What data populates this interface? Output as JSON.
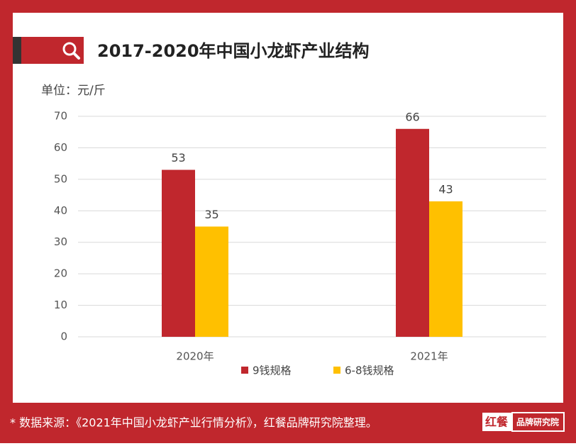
{
  "chart_data": {
    "type": "bar",
    "title": "2017-2020年中国小龙虾产业结构",
    "ylabel": "单位：元/斤",
    "categories": [
      "2020年",
      "2021年"
    ],
    "series": [
      {
        "name": "9钱规格",
        "color": "#c0272d",
        "values": [
          53,
          66
        ]
      },
      {
        "name": "6-8钱规格",
        "color": "#ffc000",
        "values": [
          35,
          43
        ]
      }
    ],
    "ylim": [
      0,
      70
    ],
    "yticks": [
      0,
      10,
      20,
      30,
      40,
      50,
      60,
      70
    ],
    "grid": true
  },
  "footer": {
    "source": "* 数据来源：《2021年中国小龙虾产业行情分析》，红餐品牌研究院整理。",
    "brand": "红餐",
    "brand_sub": "品牌研究院"
  }
}
